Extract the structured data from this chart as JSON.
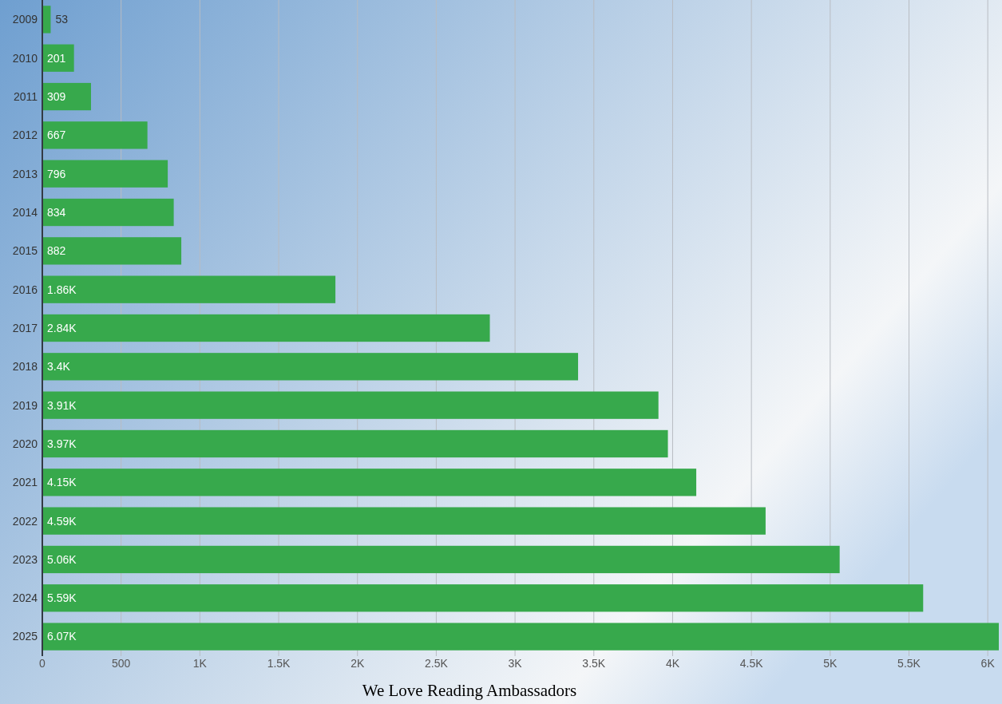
{
  "chart_data": {
    "type": "bar",
    "orientation": "horizontal",
    "title": "We Love Reading Ambassadors",
    "categories": [
      "2009",
      "2010",
      "2011",
      "2012",
      "2013",
      "2014",
      "2015",
      "2016",
      "2017",
      "2018",
      "2019",
      "2020",
      "2021",
      "2022",
      "2023",
      "2024",
      "2025"
    ],
    "values": [
      53,
      201,
      309,
      667,
      796,
      834,
      882,
      1860,
      2840,
      3400,
      3910,
      3970,
      4150,
      4590,
      5060,
      5590,
      6070
    ],
    "value_labels": [
      "53",
      "201",
      "309",
      "667",
      "796",
      "834",
      "882",
      "1.86K",
      "2.84K",
      "3.4K",
      "3.91K",
      "3.97K",
      "4.15K",
      "4.59K",
      "5.06K",
      "5.59K",
      "6.07K"
    ],
    "color": "#37a94c",
    "xlim": [
      0,
      6070
    ],
    "xticks": [
      0,
      500,
      {
        "value": 1000,
        "label": "1K"
      },
      {
        "value": 1500,
        "label": "1.5K"
      },
      {
        "value": 2000,
        "label": "2K"
      },
      {
        "value": 2500,
        "label": "2.5K"
      },
      {
        "value": 3000,
        "label": "3K"
      },
      {
        "value": 3500,
        "label": "3.5K"
      },
      {
        "value": 4000,
        "label": "4K"
      },
      {
        "value": 4500,
        "label": "4.5K"
      },
      {
        "value": 5000,
        "label": "5K"
      },
      {
        "value": 5500,
        "label": "5.5K"
      },
      {
        "value": 6000,
        "label": "6K"
      }
    ],
    "grid": "x"
  }
}
